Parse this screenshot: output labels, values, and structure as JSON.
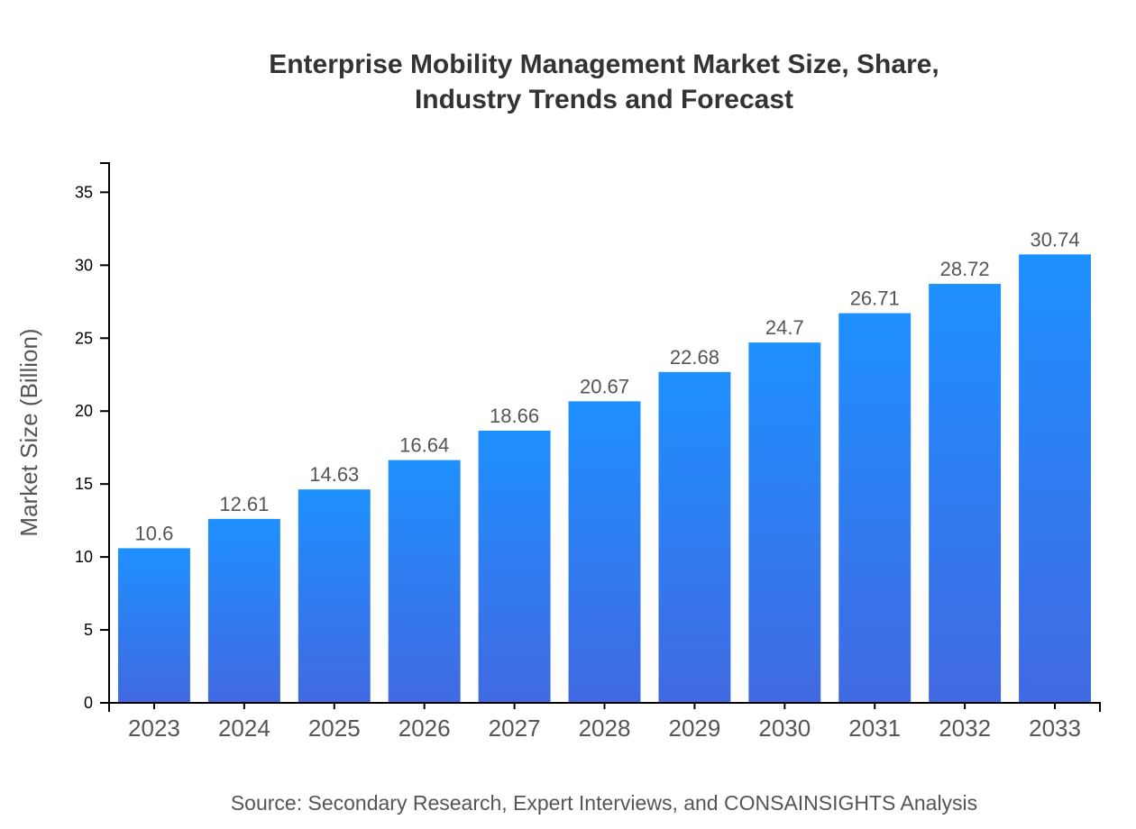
{
  "chart_data": {
    "type": "bar",
    "title_lines": [
      "Enterprise Mobility Management Market Size, Share,",
      "Industry Trends and Forecast"
    ],
    "xlabel": "",
    "ylabel": "Market Size (Billion)",
    "categories": [
      "2023",
      "2024",
      "2025",
      "2026",
      "2027",
      "2028",
      "2029",
      "2030",
      "2031",
      "2032",
      "2033"
    ],
    "values": [
      10.6,
      12.61,
      14.63,
      16.64,
      18.66,
      20.67,
      22.68,
      24.7,
      26.71,
      28.72,
      30.74
    ],
    "ylim": [
      0,
      37
    ],
    "yticks": [
      0,
      5,
      10,
      15,
      20,
      25,
      30,
      35
    ],
    "grid": false,
    "legend": "none",
    "colors": {
      "bar_top": "#1E90FF",
      "bar_bottom": "#4169E1",
      "label": "#555555",
      "axis": "#000000"
    },
    "source": "Source: Secondary Research, Expert Interviews, and CONSAINSIGHTS Analysis"
  }
}
